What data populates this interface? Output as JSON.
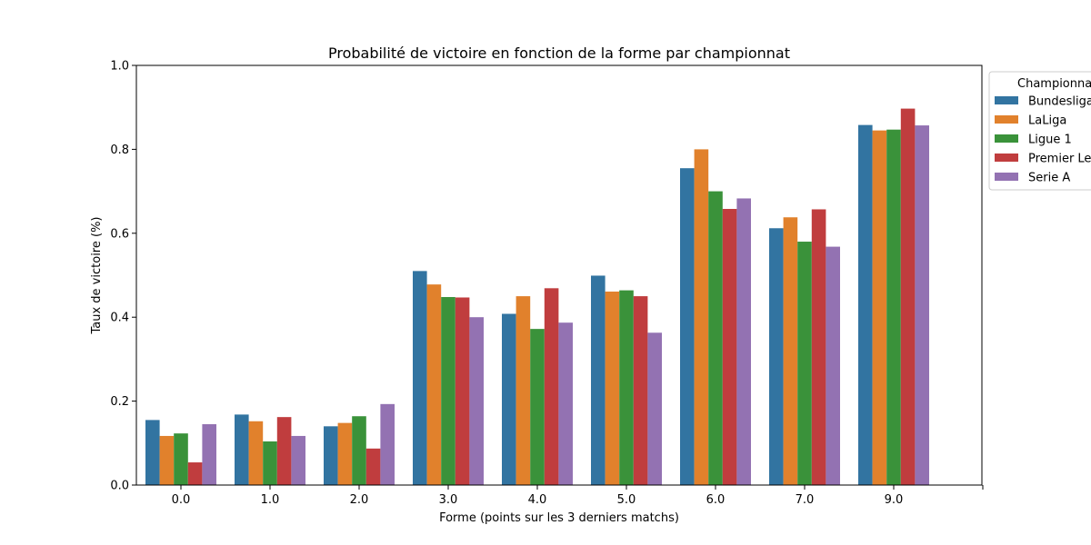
{
  "chart_data": {
    "type": "bar",
    "title": "Probabilité de victoire en fonction de la forme par championnat",
    "xlabel": "Forme (points sur les 3 derniers matchs)",
    "ylabel": "Taux de victoire (%)",
    "ylim": [
      0,
      1.0
    ],
    "yticks": [
      "0.0",
      "0.2",
      "0.4",
      "0.6",
      "0.8",
      "1.0"
    ],
    "categories": [
      "0.0",
      "1.0",
      "2.0",
      "3.0",
      "4.0",
      "5.0",
      "6.0",
      "7.0",
      "9.0"
    ],
    "legend": {
      "title": "Championnat",
      "placement": "upper-right-outside"
    },
    "series": [
      {
        "name": "Bundesliga",
        "color": "#3274a1",
        "values": [
          0.155,
          0.168,
          0.14,
          0.51,
          0.408,
          0.499,
          0.755,
          0.612,
          0.858
        ]
      },
      {
        "name": "LaLiga",
        "color": "#e1812c",
        "values": [
          0.117,
          0.152,
          0.148,
          0.478,
          0.45,
          0.461,
          0.8,
          0.638,
          0.845
        ]
      },
      {
        "name": "Ligue 1",
        "color": "#3a923a",
        "values": [
          0.123,
          0.104,
          0.164,
          0.448,
          0.372,
          0.464,
          0.7,
          0.58,
          0.847
        ]
      },
      {
        "name": "Premier League",
        "color": "#c03d3e",
        "values": [
          0.054,
          0.162,
          0.087,
          0.447,
          0.469,
          0.45,
          0.658,
          0.657,
          0.897
        ]
      },
      {
        "name": "Serie A",
        "color": "#9372b2",
        "values": [
          0.145,
          0.117,
          0.193,
          0.4,
          0.387,
          0.363,
          0.683,
          0.568,
          0.857
        ]
      }
    ]
  }
}
